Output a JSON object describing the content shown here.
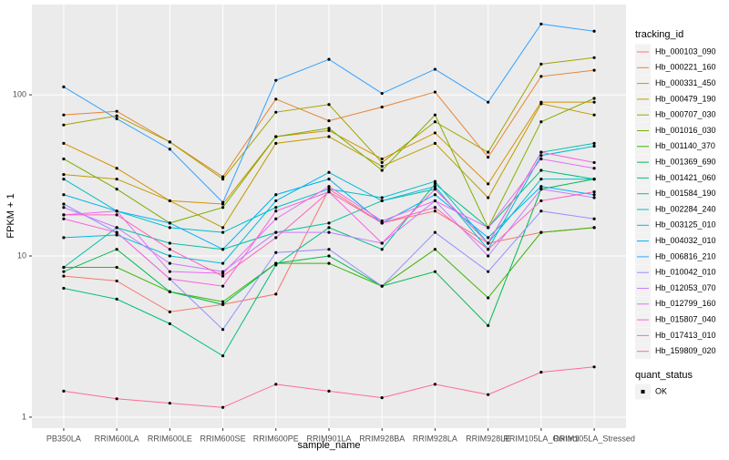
{
  "chart_data": {
    "type": "line",
    "x_label": "sample_name",
    "y_label": "FPKM + 1",
    "log_scale": true,
    "grid": true,
    "legend_position": "right",
    "legend_title": "tracking_id",
    "point_legend": {
      "title": "quant_status",
      "labels": [
        "OK"
      ]
    },
    "categories": [
      "PB350LA",
      "RRIM600LA",
      "RRIM600LE",
      "RRIM600SE",
      "RRIM600PE",
      "RRIM901LA",
      "RRIM928BA",
      "RRIM928LA",
      "RRIM928LE",
      "RRIM105LA_Control",
      "RRIM105LA_Stressed"
    ],
    "ylim": [
      0.855,
      363
    ],
    "yticks": [
      1,
      10,
      100
    ],
    "series": [
      {
        "name": "Hb_000103_090",
        "color": "#F8766D",
        "values": [
          7.5,
          7,
          4.5,
          5,
          5.8,
          26,
          16,
          19,
          12,
          14,
          15
        ]
      },
      {
        "name": "Hb_000221_160",
        "color": "#EA8331",
        "values": [
          75,
          79,
          51,
          31,
          94,
          69,
          84,
          104,
          41,
          130,
          142
        ]
      },
      {
        "name": "Hb_000331_450",
        "color": "#D89000",
        "values": [
          50,
          35,
          22,
          21,
          55,
          60,
          40,
          58,
          28,
          90,
          90
        ]
      },
      {
        "name": "Hb_000479_190",
        "color": "#C09B00",
        "values": [
          32,
          30,
          22,
          15,
          50,
          55,
          36,
          50,
          23,
          88,
          75
        ]
      },
      {
        "name": "Hb_000707_030",
        "color": "#A3A500",
        "values": [
          65,
          74,
          51,
          30,
          78,
          87,
          38,
          68,
          44,
          155,
          170
        ]
      },
      {
        "name": "Hb_001016_030",
        "color": "#7CAE00",
        "values": [
          40,
          26,
          16,
          20,
          55,
          62,
          34,
          75,
          15,
          68,
          95
        ]
      },
      {
        "name": "Hb_001140_370",
        "color": "#39B600",
        "values": [
          8.5,
          8.5,
          6,
          5.2,
          9,
          9,
          6.5,
          11,
          5.5,
          14,
          15
        ]
      },
      {
        "name": "Hb_001369_690",
        "color": "#00BB4E",
        "values": [
          8,
          11,
          6,
          5,
          9,
          10,
          6.5,
          8,
          3.7,
          26,
          30
        ]
      },
      {
        "name": "Hb_001421_060",
        "color": "#00BF7D",
        "values": [
          6.3,
          5.4,
          3.8,
          2.4,
          8.8,
          15,
          11,
          28,
          15,
          34,
          30
        ]
      },
      {
        "name": "Hb_001584_190",
        "color": "#00C1A3",
        "values": [
          8.5,
          15,
          12,
          11,
          14,
          16,
          22,
          26,
          12,
          44,
          50
        ]
      },
      {
        "name": "Hb_002284_240",
        "color": "#00BFC4",
        "values": [
          30,
          19,
          15,
          14,
          20,
          26,
          23,
          29,
          12,
          30,
          30
        ]
      },
      {
        "name": "Hb_003125_010",
        "color": "#00BAE0",
        "values": [
          13,
          13.5,
          10,
          9,
          22,
          33,
          22,
          27,
          11,
          42,
          48
        ]
      },
      {
        "name": "Hb_004032_010",
        "color": "#00B0F6",
        "values": [
          24,
          19,
          16,
          11,
          24,
          30,
          16,
          24,
          13,
          27,
          24
        ]
      },
      {
        "name": "Hb_006816_210",
        "color": "#35A2FF",
        "values": [
          112,
          71,
          46,
          21.5,
          123,
          166,
          102,
          144,
          90,
          275,
          248
        ]
      },
      {
        "name": "Hb_010042_010",
        "color": "#9590FF",
        "values": [
          21,
          14,
          7.2,
          3.5,
          10.5,
          11,
          6.5,
          14,
          8,
          19,
          17
        ]
      },
      {
        "name": "Hb_012053_070",
        "color": "#C77CFF",
        "values": [
          20,
          15,
          9,
          8,
          14,
          14,
          12,
          22,
          10,
          26,
          23
        ]
      },
      {
        "name": "Hb_012799_160",
        "color": "#E76BF3",
        "values": [
          18,
          19,
          8,
          7.8,
          17,
          27,
          16.5,
          22,
          15,
          40,
          35
        ]
      },
      {
        "name": "Hb_015807_040",
        "color": "#FA62DB",
        "values": [
          17,
          14,
          7.2,
          6.5,
          19,
          25,
          12,
          26,
          12,
          44,
          38
        ]
      },
      {
        "name": "Hb_017413_010",
        "color": "#FF62BC",
        "values": [
          18,
          18,
          11,
          7.5,
          13,
          25,
          16,
          20,
          11,
          22,
          25
        ]
      },
      {
        "name": "Hb_159809_020",
        "color": "#FF6C91",
        "values": [
          1.45,
          1.3,
          1.22,
          1.15,
          1.6,
          1.45,
          1.32,
          1.6,
          1.38,
          1.9,
          2.05
        ]
      }
    ]
  }
}
